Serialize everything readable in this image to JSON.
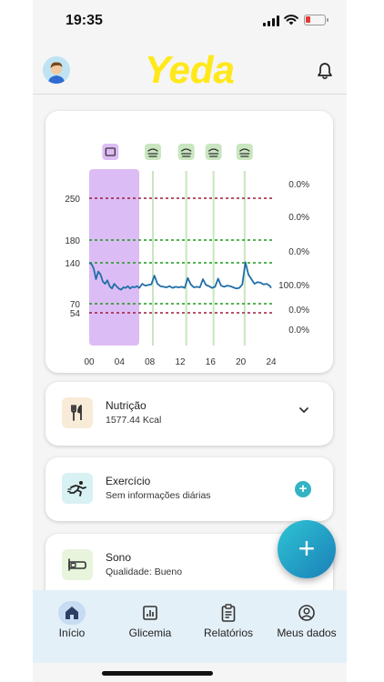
{
  "status_bar": {
    "time": "19:35"
  },
  "header": {
    "logo": "Yeda"
  },
  "chart": {
    "event_icons": [
      "medication-icon",
      "meal-icon",
      "meal-icon",
      "meal-icon",
      "meal-icon"
    ],
    "colors": {
      "high_line": "#9b1b3a",
      "target_line": "#1a9a1a",
      "trace": "#1f6fa8",
      "highlight": "#dcbcf5",
      "marker": "#c9e6c0"
    }
  },
  "chart_data": {
    "type": "line",
    "x_ticks": [
      "00",
      "04",
      "08",
      "12",
      "16",
      "20",
      "24"
    ],
    "y_ticks": [
      "250",
      "180",
      "140",
      "70",
      "54"
    ],
    "thresholds": [
      {
        "value": 250,
        "style": "dashed",
        "color": "#9b1b3a"
      },
      {
        "value": 180,
        "style": "dashed",
        "color": "#1a9a1a"
      },
      {
        "value": 140,
        "style": "dashed",
        "color": "#1a9a1a"
      },
      {
        "value": 70,
        "style": "dashed",
        "color": "#1a9a1a"
      },
      {
        "value": 54,
        "style": "dashed",
        "color": "#9b1b3a"
      }
    ],
    "percentages": [
      "0.0%",
      "0.0%",
      "0.0%",
      "100.0%",
      "0.0%",
      "0.0%"
    ],
    "sleep_band_hours": [
      0,
      6.6
    ],
    "meal_marker_hours": [
      8.4,
      12.8,
      16.4,
      20.5
    ],
    "series": [
      {
        "x": [
          0,
          0.3,
          0.6,
          0.9,
          1.2,
          1.5,
          1.8,
          2.1,
          2.4,
          2.7,
          3.0,
          3.3,
          3.6,
          3.9,
          4.2,
          4.5,
          4.8,
          5.1,
          5.4,
          5.7,
          6.0,
          6.3,
          6.6,
          7.0,
          7.4,
          7.8,
          8.2,
          8.6,
          9.0,
          9.4,
          9.8,
          10.2,
          10.6,
          11.0,
          11.4,
          11.8,
          12.2,
          12.6,
          13.0,
          13.4,
          13.8,
          14.2,
          14.6,
          15.0,
          15.4,
          15.8,
          16.2,
          16.6,
          17.0,
          17.4,
          17.8,
          18.2,
          18.6,
          19.0,
          19.4,
          19.8,
          20.2,
          20.6,
          21.0,
          21.4,
          21.8,
          22.2,
          22.6,
          23.0,
          23.4,
          23.8,
          24.0
        ],
        "y": [
          140,
          138,
          130,
          112,
          125,
          120,
          108,
          104,
          110,
          100,
          96,
          104,
          100,
          96,
          94,
          98,
          97,
          100,
          96,
          99,
          98,
          100,
          97,
          104,
          101,
          102,
          103,
          118,
          104,
          100,
          99,
          98,
          100,
          97,
          99,
          98,
          99,
          97,
          114,
          103,
          98,
          99,
          98,
          112,
          102,
          100,
          97,
          99,
          113,
          101,
          99,
          101,
          100,
          98,
          96,
          97,
          103,
          141,
          120,
          112,
          104,
          107,
          106,
          103,
          104,
          101,
          97
        ]
      }
    ]
  },
  "cards": [
    {
      "title": "Nutrição",
      "subtitle": "1577.44 Kcal",
      "icon": "utensils-icon"
    },
    {
      "title": "Exercício",
      "subtitle": "Sem informações diárias",
      "icon": "running-icon"
    },
    {
      "title": "Sono",
      "subtitle": "Qualidade: Bueno",
      "icon": "bed-icon"
    }
  ],
  "fab": {
    "label": "+"
  },
  "tabs": [
    {
      "label": "Início",
      "icon": "home-icon",
      "active": true
    },
    {
      "label": "Glicemia",
      "icon": "chart-icon"
    },
    {
      "label": "Relatórios",
      "icon": "clipboard-icon"
    },
    {
      "label": "Meus dados",
      "icon": "user-icon"
    }
  ]
}
